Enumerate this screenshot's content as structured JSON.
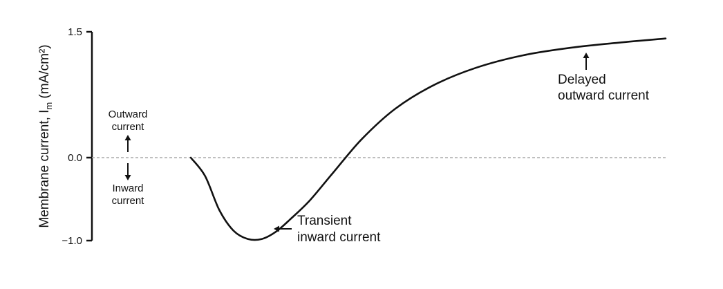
{
  "chart_data": {
    "type": "line",
    "title": "",
    "xlabel": "",
    "ylabel": "Membrane current, I",
    "ylabel_subscript": "m",
    "ylabel_unit": " (mA/cm²)",
    "ylim": [
      -1.0,
      1.5
    ],
    "yticks": [
      {
        "value": 1.5,
        "label": "1.5"
      },
      {
        "value": 0.0,
        "label": "0.0"
      },
      {
        "value": -1.0,
        "label": "−1.0"
      }
    ],
    "zero_line": "dashed",
    "grid": false,
    "series": [
      {
        "x": [
          0,
          0.3,
          0.6,
          0.9,
          1.2,
          1.5,
          1.8,
          2.1,
          2.5,
          3.0,
          3.6,
          4.3,
          5.1,
          6.0,
          7.0,
          8.0,
          9.0,
          10.0
        ],
        "y": [
          0.0,
          -0.22,
          -0.63,
          -0.88,
          -0.98,
          -0.98,
          -0.89,
          -0.74,
          -0.52,
          -0.18,
          0.22,
          0.58,
          0.86,
          1.07,
          1.22,
          1.31,
          1.37,
          1.42
        ]
      }
    ],
    "annotations": {
      "outward": {
        "line1": "Outward",
        "line2": "current",
        "arrow": "up-arrow-icon"
      },
      "inward": {
        "line1": "Inward",
        "line2": "current",
        "arrow": "down-arrow-icon"
      },
      "transient": {
        "line1": "Transient",
        "line2": "inward current",
        "arrow": "left-arrow-icon"
      },
      "delayed": {
        "line1": "Delayed",
        "line2": "outward current",
        "arrow": "up-arrow-icon"
      }
    }
  }
}
